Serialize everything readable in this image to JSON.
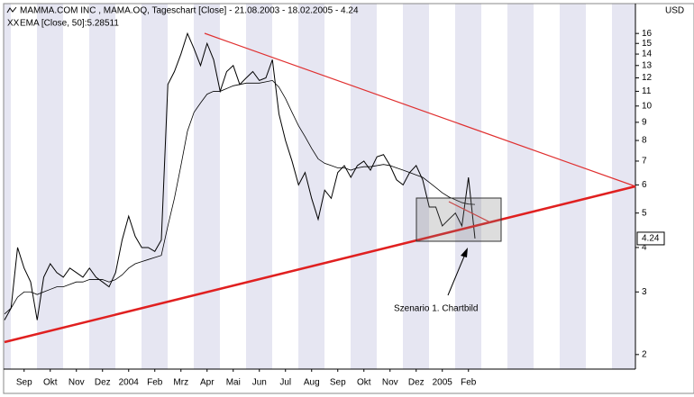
{
  "chart_data": {
    "type": "line",
    "log_scale": true,
    "currency": "USD",
    "categories": [
      null,
      null,
      null,
      "Sep",
      null,
      null,
      null,
      "Okt",
      null,
      null,
      null,
      "Nov",
      null,
      null,
      null,
      "Dez",
      null,
      null,
      null,
      "2004",
      null,
      null,
      null,
      "Feb",
      null,
      null,
      null,
      "Mrz",
      null,
      null,
      null,
      "Apr",
      null,
      null,
      null,
      "Mai",
      null,
      null,
      null,
      "Jun",
      null,
      null,
      null,
      "Jul",
      null,
      null,
      null,
      "Aug",
      null,
      null,
      null,
      "Sep",
      null,
      null,
      null,
      "Okt",
      null,
      null,
      null,
      "Nov",
      null,
      null,
      null,
      "Dez",
      null,
      null,
      null,
      "2005",
      null,
      null,
      null,
      "Feb",
      null
    ],
    "series": [
      {
        "name": "MAMMA.COM INC , MAMA.OQ, Tageschart [Close] - 21.08.2003 - 18.02.2005 - 4.24",
        "color": "#000000",
        "values": [
          2.5,
          2.7,
          4.0,
          3.5,
          3.2,
          2.5,
          3.3,
          3.6,
          3.4,
          3.3,
          3.5,
          3.4,
          3.3,
          3.5,
          3.3,
          3.2,
          3.1,
          3.4,
          4.2,
          4.9,
          4.3,
          4.0,
          4.0,
          3.9,
          4.2,
          11.5,
          12.5,
          14,
          16,
          14.5,
          13,
          15,
          13.5,
          11,
          12.5,
          13,
          11.5,
          12,
          12.5,
          11.8,
          12,
          13.5,
          9.5,
          8,
          7,
          6,
          6.5,
          5.5,
          4.8,
          5.8,
          5.5,
          6.5,
          6.8,
          6.3,
          6.8,
          7.0,
          6.6,
          7.2,
          7.3,
          6.8,
          6.2,
          6.0,
          6.5,
          6.8,
          6.2,
          5.2,
          5.2,
          4.6,
          4.8,
          5.0,
          4.6,
          6.3,
          4.24
        ]
      },
      {
        "name": "EMA [Close, 50]:5.28511",
        "color": "#000000",
        "values": [
          2.6,
          2.7,
          2.9,
          3.0,
          3.0,
          2.95,
          3.0,
          3.05,
          3.1,
          3.1,
          3.15,
          3.2,
          3.2,
          3.25,
          3.25,
          3.25,
          3.2,
          3.25,
          3.35,
          3.5,
          3.6,
          3.65,
          3.7,
          3.75,
          3.8,
          4.6,
          5.5,
          6.8,
          8.5,
          9.6,
          10.2,
          10.8,
          11,
          11,
          11.2,
          11.4,
          11.5,
          11.6,
          11.6,
          11.6,
          11.7,
          11.8,
          11.3,
          10.5,
          9.6,
          8.8,
          8.2,
          7.6,
          7.1,
          6.9,
          6.8,
          6.7,
          6.7,
          6.6,
          6.7,
          6.75,
          6.75,
          6.8,
          6.85,
          6.8,
          6.7,
          6.6,
          6.5,
          6.4,
          6.3,
          6.1,
          5.9,
          5.7,
          5.55,
          5.45,
          5.35,
          5.3,
          5.28511
        ]
      }
    ],
    "ylim": [
      1.82,
      19.3
    ],
    "yticks": [
      2,
      3,
      4,
      5,
      6,
      7,
      8,
      9,
      10,
      11,
      12,
      13,
      14,
      15,
      16
    ],
    "annotation": "Szenario 1. Chartbild"
  }
}
